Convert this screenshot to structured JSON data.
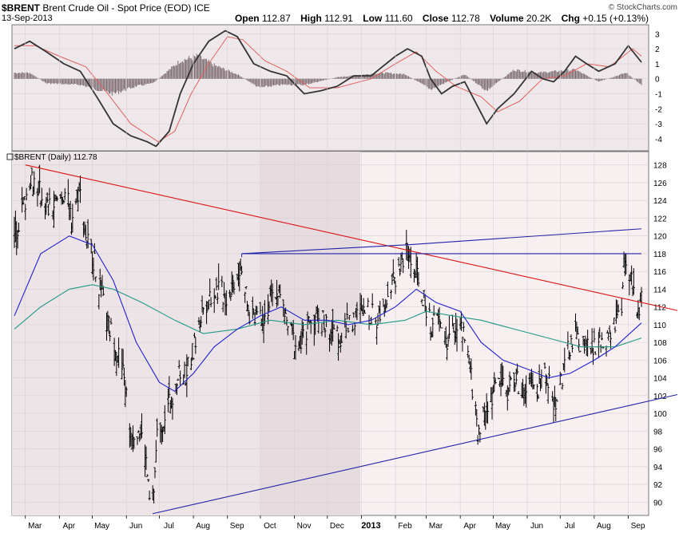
{
  "header": {
    "symbol": "$BRENT",
    "name": "Brent Crude Oil - Spot Price (EOD)",
    "exchange": "ICE",
    "date": "13-Sep-2013",
    "brand": "© StockCharts.com",
    "open_label": "Open",
    "open": "112.87",
    "high_label": "High",
    "high": "112.91",
    "low_label": "Low",
    "low": "111.60",
    "close_label": "Close",
    "close": "112.78",
    "volume_label": "Volume",
    "volume": "20.2K",
    "chg_label": "Chg",
    "chg": "+0.15 (+0.13%)"
  },
  "price_panel_label": "$BRENT (Daily) 112.78",
  "colors": {
    "price_bg": "#f7eff0",
    "price_bg_shaded": "#ece4e6",
    "panel_border": "#777777",
    "grid": "#d8cfd2",
    "bars": "#000000",
    "ma_short": "#2222cc",
    "ma_long": "#229988",
    "red_trend": "#dd1111",
    "blue_lines": "#2222aa",
    "macd_line": "#333333",
    "signal_line": "#e06060",
    "histogram": "#7a6a6e"
  },
  "chart_data": [
    {
      "type": "bar",
      "title": "$BRENT (Daily) 112.78",
      "ylim": [
        88.5,
        129.5
      ],
      "y_ticks": [
        90,
        92,
        94,
        96,
        98,
        100,
        102,
        104,
        106,
        108,
        110,
        112,
        114,
        116,
        118,
        120,
        122,
        124,
        126,
        128
      ],
      "x_labels": [
        "Mar",
        "Apr",
        "May",
        "Jun",
        "Jul",
        "Aug",
        "Sep",
        "Oct",
        "Nov",
        "Dec",
        "2013",
        "Feb",
        "Mar",
        "Apr",
        "May",
        "Jun",
        "Jul",
        "Aug",
        "Sep"
      ],
      "bold_x_label": "2013",
      "x_dates": [
        "2012-03-01",
        "2012-04-01",
        "2012-05-01",
        "2012-06-01",
        "2012-07-01",
        "2012-08-01",
        "2012-09-01",
        "2012-10-01",
        "2012-11-01",
        "2012-12-01",
        "2013-01-01",
        "2013-02-01",
        "2013-03-01",
        "2013-04-01",
        "2013-05-01",
        "2013-06-01",
        "2013-07-01",
        "2013-08-01",
        "2013-09-01"
      ],
      "x_range": [
        "2012-02-20",
        "2013-09-13"
      ],
      "shaded_region": [
        "2012-10-01",
        "2012-12-31"
      ],
      "close_path": [
        [
          "2012-02-20",
          120.0
        ],
        [
          "2012-03-01",
          124.0
        ],
        [
          "2012-03-06",
          127.0
        ],
        [
          "2012-03-14",
          125.0
        ],
        [
          "2012-03-22",
          123.0
        ],
        [
          "2012-03-30",
          123.5
        ],
        [
          "2012-04-06",
          125.0
        ],
        [
          "2012-04-12",
          122.0
        ],
        [
          "2012-04-19",
          125.5
        ],
        [
          "2012-04-25",
          120.0
        ],
        [
          "2012-05-01",
          118.0
        ],
        [
          "2012-05-08",
          114.0
        ],
        [
          "2012-05-15",
          110.0
        ],
        [
          "2012-05-22",
          108.0
        ],
        [
          "2012-05-30",
          104.0
        ],
        [
          "2012-06-05",
          98.0
        ],
        [
          "2012-06-12",
          98.5
        ],
        [
          "2012-06-18",
          96.0
        ],
        [
          "2012-06-22",
          90.0
        ],
        [
          "2012-06-25",
          89.5
        ],
        [
          "2012-06-29",
          97.5
        ],
        [
          "2012-07-03",
          99.0
        ],
        [
          "2012-07-10",
          101.0
        ],
        [
          "2012-07-17",
          104.0
        ],
        [
          "2012-07-25",
          104.5
        ],
        [
          "2012-08-01",
          107.0
        ],
        [
          "2012-08-10",
          112.0
        ],
        [
          "2012-08-17",
          113.5
        ],
        [
          "2012-08-24",
          114.0
        ],
        [
          "2012-08-31",
          113.0
        ],
        [
          "2012-09-07",
          115.0
        ],
        [
          "2012-09-14",
          117.0
        ],
        [
          "2012-09-20",
          111.0
        ],
        [
          "2012-09-27",
          111.5
        ],
        [
          "2012-10-05",
          111.0
        ],
        [
          "2012-10-10",
          112.5
        ],
        [
          "2012-10-17",
          114.0
        ],
        [
          "2012-10-24",
          110.5
        ],
        [
          "2012-11-01",
          108.0
        ],
        [
          "2012-11-07",
          107.5
        ],
        [
          "2012-11-15",
          110.5
        ],
        [
          "2012-11-22",
          111.0
        ],
        [
          "2012-11-30",
          110.0
        ],
        [
          "2012-12-07",
          109.0
        ],
        [
          "2012-12-14",
          108.5
        ],
        [
          "2012-12-21",
          110.5
        ],
        [
          "2012-12-31",
          111.0
        ],
        [
          "2013-01-07",
          111.5
        ],
        [
          "2013-01-15",
          110.5
        ],
        [
          "2013-01-23",
          113.0
        ],
        [
          "2013-01-31",
          115.0
        ],
        [
          "2013-02-08",
          117.5
        ],
        [
          "2013-02-12",
          118.0
        ],
        [
          "2013-02-19",
          116.0
        ],
        [
          "2013-02-26",
          113.0
        ],
        [
          "2013-03-05",
          110.0
        ],
        [
          "2013-03-12",
          110.5
        ],
        [
          "2013-03-20",
          108.0
        ],
        [
          "2013-03-28",
          110.0
        ],
        [
          "2013-04-03",
          109.0
        ],
        [
          "2013-04-10",
          105.0
        ],
        [
          "2013-04-17",
          98.0
        ],
        [
          "2013-04-23",
          100.0
        ],
        [
          "2013-04-30",
          102.0
        ],
        [
          "2013-05-07",
          104.0
        ],
        [
          "2013-05-14",
          102.5
        ],
        [
          "2013-05-21",
          104.0
        ],
        [
          "2013-05-28",
          102.0
        ],
        [
          "2013-06-04",
          103.0
        ],
        [
          "2013-06-11",
          102.5
        ],
        [
          "2013-06-18",
          105.0
        ],
        [
          "2013-06-25",
          101.0
        ],
        [
          "2013-07-01",
          103.0
        ],
        [
          "2013-07-08",
          107.0
        ],
        [
          "2013-07-15",
          108.5
        ],
        [
          "2013-07-22",
          108.0
        ],
        [
          "2013-07-29",
          107.0
        ],
        [
          "2013-08-05",
          108.0
        ],
        [
          "2013-08-12",
          107.5
        ],
        [
          "2013-08-19",
          110.0
        ],
        [
          "2013-08-26",
          111.0
        ],
        [
          "2013-08-28",
          116.5
        ],
        [
          "2013-09-02",
          115.5
        ],
        [
          "2013-09-06",
          114.0
        ],
        [
          "2013-09-10",
          111.0
        ],
        [
          "2013-09-13",
          112.78
        ]
      ],
      "moving_average_short": [
        [
          "2012-02-20",
          111.0
        ],
        [
          "2012-03-15",
          118.0
        ],
        [
          "2012-04-10",
          120.0
        ],
        [
          "2012-05-01",
          119.0
        ],
        [
          "2012-05-20",
          115.0
        ],
        [
          "2012-06-10",
          108.0
        ],
        [
          "2012-07-01",
          103.5
        ],
        [
          "2012-07-15",
          102.5
        ],
        [
          "2012-08-01",
          104.5
        ],
        [
          "2012-08-20",
          107.5
        ],
        [
          "2012-09-10",
          109.5
        ],
        [
          "2012-10-01",
          111.0
        ],
        [
          "2012-10-20",
          112.0
        ],
        [
          "2012-11-10",
          110.5
        ],
        [
          "2012-12-01",
          110.5
        ],
        [
          "2012-12-20",
          110.0
        ],
        [
          "2013-01-10",
          110.5
        ],
        [
          "2013-02-01",
          112.0
        ],
        [
          "2013-02-20",
          114.0
        ],
        [
          "2013-03-10",
          112.5
        ],
        [
          "2013-04-01",
          111.5
        ],
        [
          "2013-04-20",
          108.0
        ],
        [
          "2013-05-10",
          106.0
        ],
        [
          "2013-06-01",
          105.0
        ],
        [
          "2013-06-20",
          104.0
        ],
        [
          "2013-07-10",
          104.5
        ],
        [
          "2013-08-01",
          106.0
        ],
        [
          "2013-08-20",
          107.5
        ],
        [
          "2013-09-13",
          110.2
        ]
      ],
      "moving_average_long": [
        [
          "2012-02-20",
          109.5
        ],
        [
          "2012-03-15",
          112.0
        ],
        [
          "2012-04-10",
          114.0
        ],
        [
          "2012-05-01",
          114.5
        ],
        [
          "2012-05-20",
          114.0
        ],
        [
          "2012-06-15",
          112.5
        ],
        [
          "2012-07-15",
          110.5
        ],
        [
          "2012-08-10",
          109.0
        ],
        [
          "2012-09-10",
          109.5
        ],
        [
          "2012-10-10",
          110.5
        ],
        [
          "2012-11-10",
          110.0
        ],
        [
          "2012-12-10",
          110.5
        ],
        [
          "2013-01-10",
          110.0
        ],
        [
          "2013-02-10",
          110.5
        ],
        [
          "2013-03-01",
          111.5
        ],
        [
          "2013-03-25",
          111.0
        ],
        [
          "2013-04-20",
          110.5
        ],
        [
          "2013-05-20",
          109.5
        ],
        [
          "2013-06-20",
          108.5
        ],
        [
          "2013-07-20",
          107.5
        ],
        [
          "2013-08-20",
          107.5
        ],
        [
          "2013-09-13",
          108.5
        ]
      ],
      "trend_lines": [
        {
          "name": "red",
          "from": [
            "2012-03-01",
            128.0
          ],
          "to": [
            "2013-09-13",
            112.5
          ]
        },
        {
          "name": "upper-blue",
          "from": [
            "2012-09-14",
            118.0
          ],
          "to": [
            "2013-02-12",
            119.0
          ],
          "extend_to": [
            "2013-09-13",
            120.8
          ]
        },
        {
          "name": "horizontal",
          "from": [
            "2012-09-14",
            118.0
          ],
          "to": [
            "2013-09-13",
            118.0
          ]
        },
        {
          "name": "lower-blue",
          "from": [
            "2012-06-25",
            88.7
          ],
          "to": [
            "2013-09-13",
            101.2
          ]
        }
      ]
    },
    {
      "type": "line",
      "title": "MACD",
      "ylim": [
        -4.8,
        3.6
      ],
      "y_ticks": [
        -4,
        -3,
        -2,
        -1,
        0,
        1,
        2,
        3
      ],
      "macd": [
        [
          "2012-02-20",
          2.0
        ],
        [
          "2012-03-05",
          2.5
        ],
        [
          "2012-03-20",
          1.8
        ],
        [
          "2012-04-05",
          1.0
        ],
        [
          "2012-04-20",
          0.5
        ],
        [
          "2012-05-05",
          -1.2
        ],
        [
          "2012-05-20",
          -3.0
        ],
        [
          "2012-06-05",
          -3.8
        ],
        [
          "2012-06-20",
          -4.2
        ],
        [
          "2012-06-28",
          -4.5
        ],
        [
          "2012-07-10",
          -3.5
        ],
        [
          "2012-07-20",
          -1.0
        ],
        [
          "2012-08-01",
          1.0
        ],
        [
          "2012-08-15",
          2.5
        ],
        [
          "2012-08-30",
          3.2
        ],
        [
          "2012-09-10",
          2.8
        ],
        [
          "2012-09-25",
          1.0
        ],
        [
          "2012-10-10",
          0.5
        ],
        [
          "2012-10-25",
          0.2
        ],
        [
          "2012-11-10",
          -1.0
        ],
        [
          "2012-11-25",
          -0.8
        ],
        [
          "2012-12-10",
          -0.5
        ],
        [
          "2012-12-25",
          0.2
        ],
        [
          "2013-01-10",
          0.2
        ],
        [
          "2013-01-20",
          0.8
        ],
        [
          "2013-02-01",
          1.5
        ],
        [
          "2013-02-12",
          2.0
        ],
        [
          "2013-02-25",
          1.5
        ],
        [
          "2013-03-05",
          0.0
        ],
        [
          "2013-03-15",
          -1.0
        ],
        [
          "2013-03-25",
          -0.5
        ],
        [
          "2013-04-05",
          -0.2
        ],
        [
          "2013-04-18",
          -2.0
        ],
        [
          "2013-04-25",
          -3.0
        ],
        [
          "2013-05-05",
          -2.0
        ],
        [
          "2013-05-20",
          -1.0
        ],
        [
          "2013-06-05",
          0.5
        ],
        [
          "2013-06-15",
          0.0
        ],
        [
          "2013-06-25",
          -0.2
        ],
        [
          "2013-07-05",
          0.5
        ],
        [
          "2013-07-15",
          1.5
        ],
        [
          "2013-07-25",
          1.0
        ],
        [
          "2013-08-05",
          0.5
        ],
        [
          "2013-08-20",
          1.0
        ],
        [
          "2013-09-01",
          2.2
        ],
        [
          "2013-09-13",
          1.1
        ]
      ],
      "signal": [
        [
          "2012-02-20",
          2.2
        ],
        [
          "2012-03-10",
          2.2
        ],
        [
          "2012-04-01",
          1.5
        ],
        [
          "2012-04-25",
          0.8
        ],
        [
          "2012-05-15",
          -1.0
        ],
        [
          "2012-06-05",
          -3.0
        ],
        [
          "2012-06-30",
          -4.2
        ],
        [
          "2012-07-15",
          -3.5
        ],
        [
          "2012-07-30",
          -1.0
        ],
        [
          "2012-08-15",
          1.0
        ],
        [
          "2012-09-01",
          2.8
        ],
        [
          "2012-09-15",
          2.6
        ],
        [
          "2012-10-05",
          1.2
        ],
        [
          "2012-10-25",
          0.5
        ],
        [
          "2012-11-15",
          -0.6
        ],
        [
          "2012-12-10",
          -0.6
        ],
        [
          "2013-01-10",
          0.0
        ],
        [
          "2013-02-01",
          1.0
        ],
        [
          "2013-02-20",
          1.8
        ],
        [
          "2013-03-10",
          0.5
        ],
        [
          "2013-03-28",
          -0.5
        ],
        [
          "2013-04-20",
          -1.2
        ],
        [
          "2013-05-05",
          -2.2
        ],
        [
          "2013-05-25",
          -1.5
        ],
        [
          "2013-06-15",
          0.0
        ],
        [
          "2013-07-05",
          0.2
        ],
        [
          "2013-07-25",
          1.0
        ],
        [
          "2013-08-15",
          0.8
        ],
        [
          "2013-09-05",
          2.0
        ],
        [
          "2013-09-13",
          1.5
        ]
      ],
      "histogram": [
        [
          "2012-03-05",
          0.4
        ],
        [
          "2012-03-20",
          -0.3
        ],
        [
          "2012-04-20",
          -0.4
        ],
        [
          "2012-05-20",
          -1.0
        ],
        [
          "2012-06-10",
          -0.5
        ],
        [
          "2012-06-25",
          -0.3
        ],
        [
          "2012-07-20",
          1.2
        ],
        [
          "2012-08-05",
          1.5
        ],
        [
          "2012-08-20",
          0.9
        ],
        [
          "2012-09-10",
          0.3
        ],
        [
          "2012-09-30",
          -0.6
        ],
        [
          "2012-10-20",
          -0.4
        ],
        [
          "2012-11-10",
          -0.4
        ],
        [
          "2012-12-10",
          0.1
        ],
        [
          "2013-01-20",
          0.4
        ],
        [
          "2013-02-10",
          0.3
        ],
        [
          "2013-03-05",
          -0.7
        ],
        [
          "2013-04-05",
          0.3
        ],
        [
          "2013-04-25",
          -0.8
        ],
        [
          "2013-05-20",
          0.6
        ],
        [
          "2013-06-10",
          0.4
        ],
        [
          "2013-07-15",
          0.6
        ],
        [
          "2013-08-05",
          -0.2
        ],
        [
          "2013-08-30",
          0.4
        ],
        [
          "2013-09-13",
          -0.4
        ]
      ]
    }
  ]
}
